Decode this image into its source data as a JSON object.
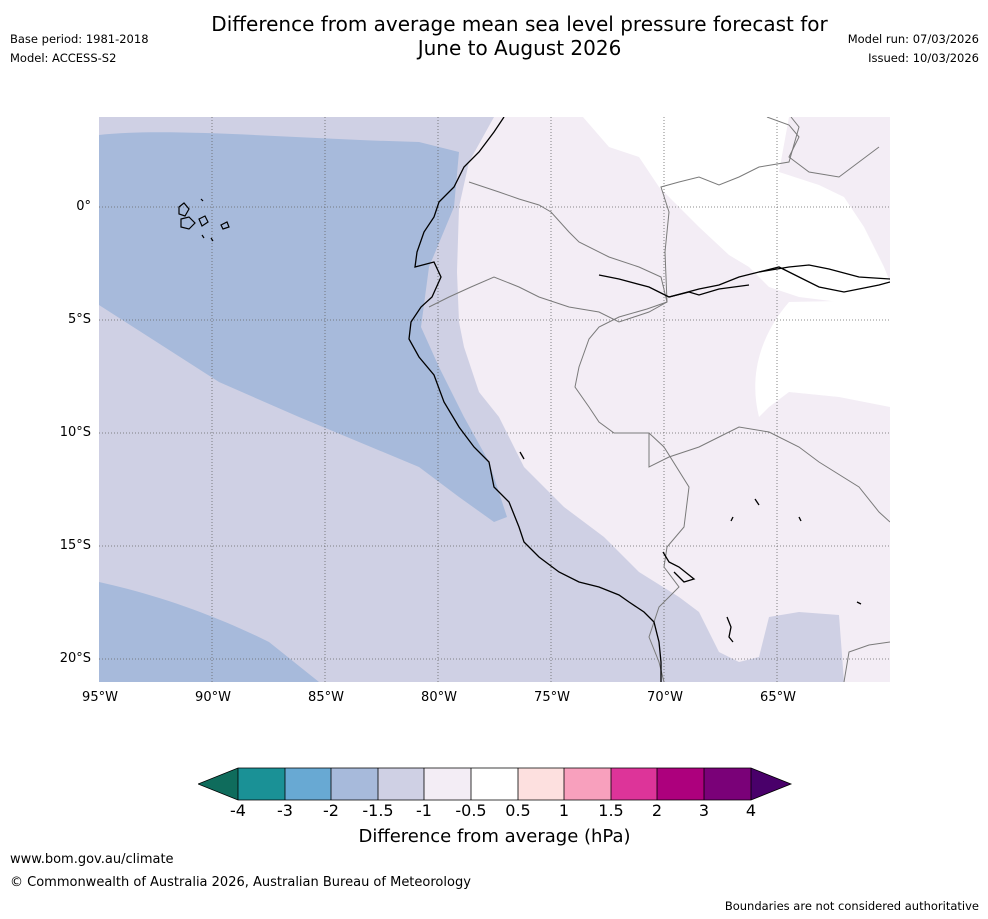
{
  "header": {
    "title_line1": "Difference from average mean sea level pressure forecast for",
    "title_line2": "June to August 2026",
    "base_period": "Base period: 1981-2018",
    "model": "Model: ACCESS-S2",
    "model_run": "Model run: 07/03/2026",
    "issued": "Issued: 10/03/2026"
  },
  "map": {
    "lat_labels": [
      "0°",
      "5°S",
      "10°S",
      "15°S",
      "20°S"
    ],
    "lon_labels": [
      "95°W",
      "90°W",
      "85°W",
      "80°W",
      "75°W",
      "70°W",
      "65°W"
    ],
    "fill_levels": {
      "minus_2_to_minus_1_5": "#a7badb",
      "minus_1_5_to_minus_1": "#cfd0e4",
      "minus_1_to_minus_0_5": "#f3edf5",
      "minus_0_5_to_0_5": "#ffffff"
    }
  },
  "colorbar": {
    "ticks": [
      "-4",
      "-3",
      "-2",
      "-1.5",
      "-1",
      "-0.5",
      "0.5",
      "1",
      "1.5",
      "2",
      "3",
      "4"
    ],
    "colors": [
      "#0f6c5c",
      "#1a9196",
      "#68a9d3",
      "#a7badb",
      "#cfd0e4",
      "#f3edf5",
      "#ffffff",
      "#fde0df",
      "#f8a0bd",
      "#dd3499",
      "#ad007d",
      "#7a0178",
      "#49006a"
    ],
    "label": "Difference from average (hPa)"
  },
  "footer": {
    "website": "www.bom.gov.au/climate",
    "copyright": "© Commonwealth of Australia 2026, Australian Bureau of Meteorology",
    "disclaimer": "Boundaries are not considered authoritative"
  }
}
